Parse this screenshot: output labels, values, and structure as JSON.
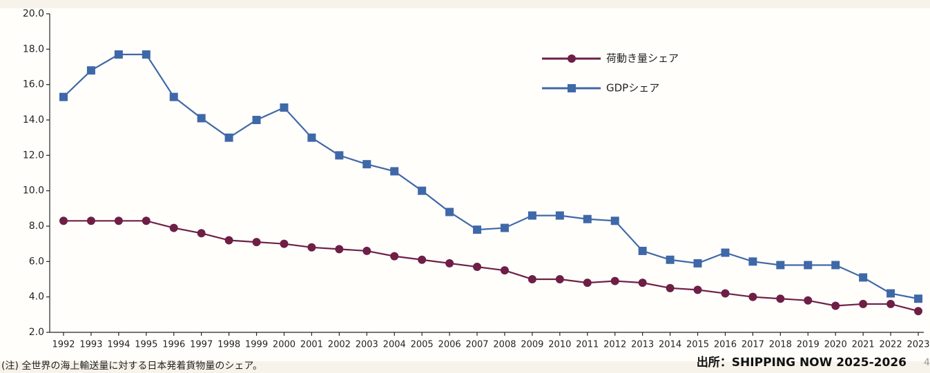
{
  "chart_data": {
    "type": "line",
    "categories": [
      "1992",
      "1993",
      "1994",
      "1995",
      "1996",
      "1997",
      "1998",
      "1999",
      "2000",
      "2001",
      "2002",
      "2003",
      "2004",
      "2005",
      "2006",
      "2007",
      "2008",
      "2009",
      "2010",
      "2011",
      "2012",
      "2013",
      "2014",
      "2015",
      "2016",
      "2017",
      "2018",
      "2019",
      "2020",
      "2021",
      "2022",
      "2023"
    ],
    "series": [
      {
        "name": "荷動き量シェア",
        "color": "#6e1f45",
        "marker": "circle",
        "values": [
          8.3,
          8.3,
          8.3,
          8.3,
          7.9,
          7.6,
          7.2,
          7.1,
          7.0,
          6.8,
          6.7,
          6.6,
          6.3,
          6.1,
          5.9,
          5.7,
          5.5,
          5.0,
          5.0,
          4.8,
          4.9,
          4.8,
          4.5,
          4.4,
          4.2,
          4.0,
          3.9,
          3.8,
          3.5,
          3.6,
          3.6,
          3.2
        ]
      },
      {
        "name": "GDPシェア",
        "color": "#3f68a8",
        "marker": "square",
        "values": [
          15.3,
          16.8,
          17.7,
          17.7,
          15.3,
          14.1,
          13.0,
          14.0,
          14.7,
          13.0,
          12.0,
          11.5,
          11.1,
          10.0,
          8.8,
          7.8,
          7.9,
          8.6,
          8.6,
          8.4,
          8.3,
          6.6,
          6.1,
          5.9,
          6.5,
          6.0,
          5.8,
          5.8,
          5.8,
          5.1,
          4.2,
          3.9
        ]
      }
    ],
    "ylim": [
      2,
      20
    ],
    "yticks": [
      {
        "value": 2,
        "label": "2.0"
      },
      {
        "value": 4,
        "label": "4.0"
      },
      {
        "value": 6,
        "label": "6.0"
      },
      {
        "value": 8,
        "label": "8.0"
      },
      {
        "value": 10,
        "label": "10.0"
      },
      {
        "value": 12,
        "label": "12.0"
      },
      {
        "value": 14,
        "label": "14.0"
      },
      {
        "value": 16,
        "label": "16.0"
      },
      {
        "value": 18,
        "label": "18.0"
      },
      {
        "value": 20,
        "label": "20.0"
      }
    ],
    "grid": false,
    "legend": "upper right",
    "note": "(注) 全世界の海上輸送量に対する日本発着貨物量のシェア。",
    "source": "出所：SHIPPING NOW 2025-2026",
    "page_number": "4"
  }
}
